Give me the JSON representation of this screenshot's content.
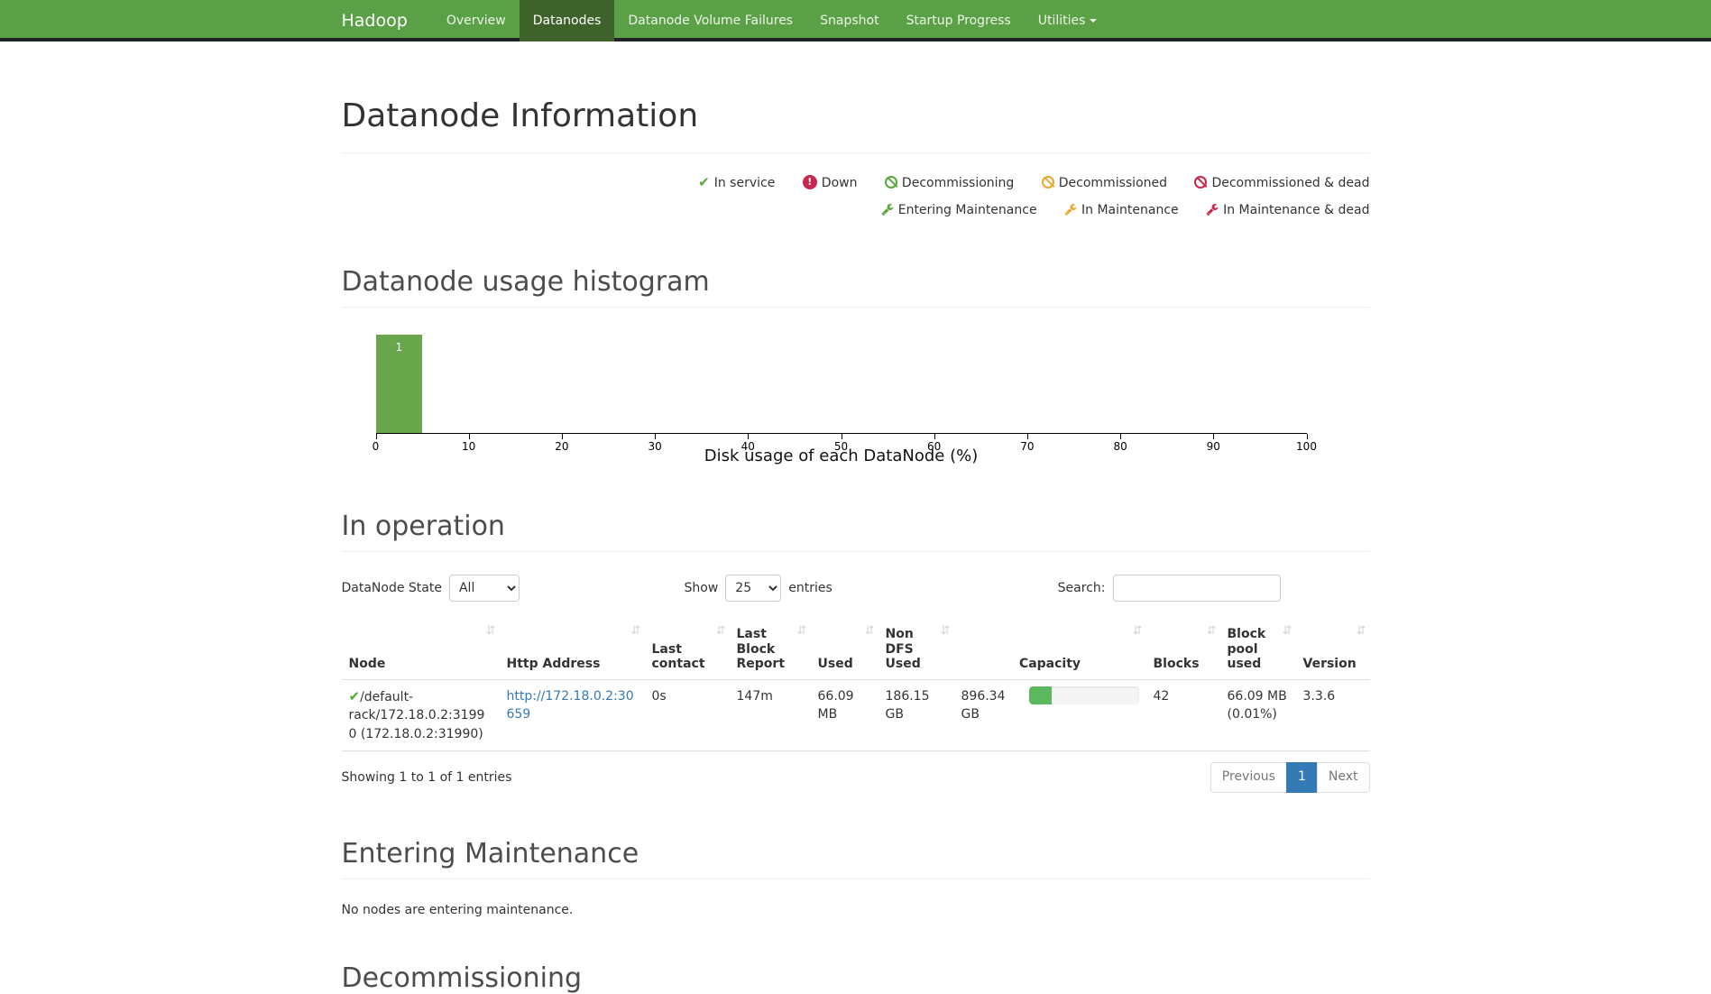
{
  "colors": {
    "navbar_bg": "#5aa046",
    "navbar_active_bg": "#3e622a",
    "link_blue": "#337ab7",
    "ok_green": "#5aa53c",
    "warn_orange": "#eda72e",
    "dead_crimson": "#c9254d",
    "progress_green": "#5cb85c",
    "pagination_active_blue": "#337ab7"
  },
  "navbar": {
    "brand": "Hadoop",
    "items": [
      {
        "label": "Overview"
      },
      {
        "label": "Datanodes"
      },
      {
        "label": "Datanode Volume Failures"
      },
      {
        "label": "Snapshot"
      },
      {
        "label": "Startup Progress"
      },
      {
        "label": "Utilities"
      }
    ]
  },
  "page": {
    "title": "Datanode Information"
  },
  "legend": {
    "row1": [
      {
        "icon": "check",
        "label": "In service",
        "color": "#5aa53c"
      },
      {
        "icon": "exclamation-circle",
        "label": "Down",
        "color": "#c9254d"
      },
      {
        "icon": "ban",
        "label": "Decommissioning",
        "color": "#5aa53c"
      },
      {
        "icon": "ban",
        "label": "Decommissioned",
        "color": "#eda72e"
      },
      {
        "icon": "ban",
        "label": "Decommissioned & dead",
        "color": "#c9254d"
      }
    ],
    "row2": [
      {
        "icon": "wrench",
        "label": "Entering Maintenance",
        "color": "#5aa53c"
      },
      {
        "icon": "wrench",
        "label": "In Maintenance",
        "color": "#eda72e"
      },
      {
        "icon": "wrench",
        "label": "In Maintenance & dead",
        "color": "#c9254d"
      }
    ]
  },
  "histogram": {
    "heading": "Datanode usage histogram",
    "chart_data": {
      "type": "bar",
      "title": "Datanode usage histogram",
      "xlabel": "Disk usage of each DataNode (%)",
      "ylabel": "",
      "xlim": [
        0,
        100
      ],
      "xticks": [
        0,
        10,
        20,
        30,
        40,
        50,
        60,
        70,
        80,
        90,
        100
      ],
      "bins": [
        {
          "x0": 0,
          "x1": 5,
          "count": 1
        }
      ],
      "bar_color": "#6aa64c",
      "grid": false,
      "legend_position": "none"
    }
  },
  "in_operation": {
    "heading": "In operation",
    "controls": {
      "state_label": "DataNode State",
      "state_value": "All",
      "show_label": "Show",
      "show_value": "25",
      "entries_label": "entries",
      "search_label": "Search:",
      "search_value": ""
    },
    "table": {
      "headers": [
        "Node",
        "Http Address",
        "Last contact",
        "Last Block Report",
        "Used",
        "Non DFS Used",
        "Capacity",
        "Blocks",
        "Block pool used",
        "Version"
      ],
      "row": {
        "state": "In service",
        "node": "/default-rack/172.18.0.2:31990 (172.18.0.2:31990)",
        "http_address": "http://172.18.0.2:30659",
        "last_contact": "0s",
        "last_block_report": "147m",
        "used": "66.09 MB",
        "non_dfs_used": "186.15 GB",
        "capacity": "896.34 GB",
        "capacity_used_pct": 21,
        "blocks": "42",
        "block_pool_used": "66.09 MB (0.01%)",
        "version": "3.3.6"
      }
    },
    "info": "Showing 1 to 1 of 1 entries",
    "pagination": {
      "previous": "Previous",
      "page": "1",
      "next": "Next"
    }
  },
  "entering_maintenance": {
    "heading": "Entering Maintenance",
    "empty_text": "No nodes are entering maintenance."
  },
  "decommissioning": {
    "heading": "Decommissioning"
  }
}
